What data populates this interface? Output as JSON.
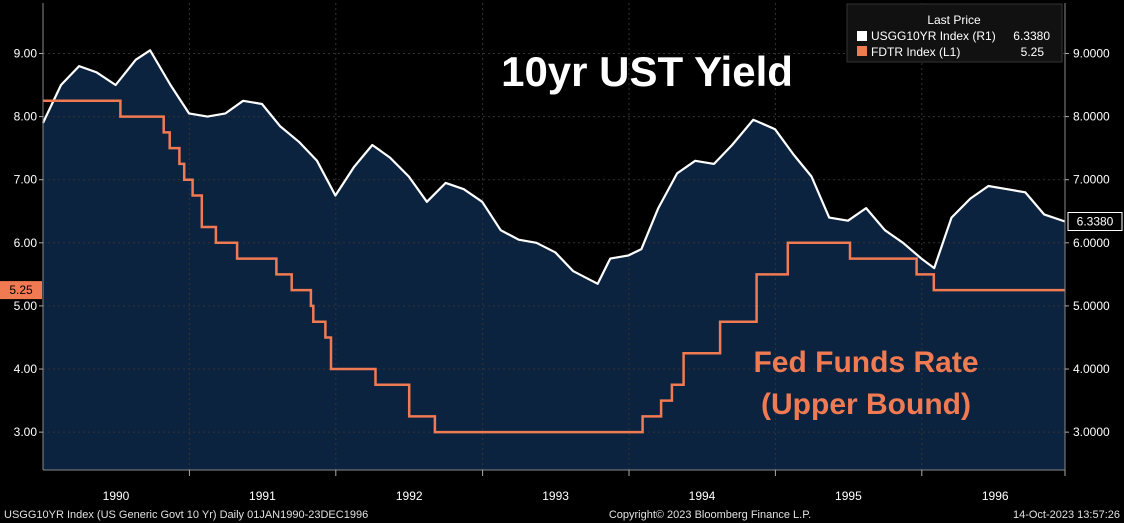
{
  "chart_data": {
    "type": "line",
    "title": "10yr UST Yield",
    "annotations": [
      "Fed Funds Rate",
      "(Upper Bound)"
    ],
    "x_range": [
      "1990-01-01",
      "1996-12-23"
    ],
    "x_tick_labels": [
      "1990",
      "1991",
      "1992",
      "1993",
      "1994",
      "1995",
      "1996"
    ],
    "left_axis": {
      "range": [
        2.4,
        9.8
      ],
      "tick_labels": [
        "3.00",
        "4.00",
        "5.00",
        "6.00",
        "7.00",
        "8.00",
        "9.00"
      ]
    },
    "right_axis": {
      "range": [
        2.4,
        9.8
      ],
      "tick_labels": [
        "3.0000",
        "4.0000",
        "5.0000",
        "6.0000",
        "7.0000",
        "8.0000",
        "9.0000"
      ]
    },
    "grid": true,
    "legend": {
      "placement": "top-right",
      "header": "Last Price",
      "entries": [
        {
          "label": "USGG10YR Index  (R1)",
          "value": "6.3380",
          "color": "#ffffff"
        },
        {
          "label": "FDTR Index  (L1)",
          "value": "5.25",
          "color": "#f07a52"
        }
      ]
    },
    "series": [
      {
        "name": "USGG10YR Index",
        "axis": "right",
        "color": "#ffffff",
        "last_label": "6.3380",
        "x": [
          "1990-01-01",
          "1990-02-15",
          "1990-04-01",
          "1990-05-15",
          "1990-07-01",
          "1990-08-20",
          "1990-09-25",
          "1990-11-15",
          "1990-12-31",
          "1991-02-15",
          "1991-04-01",
          "1991-05-15",
          "1991-07-01",
          "1991-08-15",
          "1991-10-01",
          "1991-11-15",
          "1991-12-31",
          "1992-02-15",
          "1992-04-01",
          "1992-05-15",
          "1992-07-01",
          "1992-08-15",
          "1992-10-01",
          "1992-11-15",
          "1992-12-31",
          "1993-02-15",
          "1993-04-01",
          "1993-05-15",
          "1993-07-01",
          "1993-08-15",
          "1993-10-15",
          "1993-11-15",
          "1993-12-31",
          "1994-02-01",
          "1994-03-15",
          "1994-05-01",
          "1994-06-15",
          "1994-08-01",
          "1994-09-15",
          "1994-11-07",
          "1994-12-31",
          "1995-02-15",
          "1995-04-01",
          "1995-05-15",
          "1995-07-01",
          "1995-08-15",
          "1995-10-01",
          "1995-11-15",
          "1995-12-31",
          "1996-02-01",
          "1996-03-15",
          "1996-05-01",
          "1996-06-15",
          "1996-08-01",
          "1996-09-15",
          "1996-11-01",
          "1996-12-23"
        ],
        "values": [
          7.9,
          8.5,
          8.8,
          8.7,
          8.5,
          8.9,
          9.05,
          8.5,
          8.05,
          8.0,
          8.05,
          8.25,
          8.2,
          7.85,
          7.6,
          7.3,
          6.75,
          7.2,
          7.55,
          7.35,
          7.05,
          6.65,
          6.95,
          6.85,
          6.65,
          6.2,
          6.05,
          6.0,
          5.85,
          5.55,
          5.35,
          5.75,
          5.8,
          5.9,
          6.55,
          7.1,
          7.3,
          7.25,
          7.55,
          7.95,
          7.8,
          7.4,
          7.05,
          6.4,
          6.35,
          6.55,
          6.2,
          6.0,
          5.75,
          5.6,
          6.4,
          6.7,
          6.9,
          6.85,
          6.8,
          6.45,
          6.338
        ]
      },
      {
        "name": "FDTR Index",
        "axis": "left",
        "color": "#f07a52",
        "last_label": "5.25",
        "steps": [
          {
            "date": "1990-01-01",
            "value": 8.25
          },
          {
            "date": "1990-07-13",
            "value": 8.0
          },
          {
            "date": "1990-10-29",
            "value": 7.75
          },
          {
            "date": "1990-11-13",
            "value": 7.5
          },
          {
            "date": "1990-12-07",
            "value": 7.25
          },
          {
            "date": "1990-12-19",
            "value": 7.0
          },
          {
            "date": "1991-01-09",
            "value": 6.75
          },
          {
            "date": "1991-02-01",
            "value": 6.25
          },
          {
            "date": "1991-03-08",
            "value": 6.0
          },
          {
            "date": "1991-04-30",
            "value": 5.75
          },
          {
            "date": "1991-08-06",
            "value": 5.5
          },
          {
            "date": "1991-09-13",
            "value": 5.25
          },
          {
            "date": "1991-10-31",
            "value": 5.0
          },
          {
            "date": "1991-11-06",
            "value": 4.75
          },
          {
            "date": "1991-12-06",
            "value": 4.5
          },
          {
            "date": "1991-12-20",
            "value": 4.0
          },
          {
            "date": "1992-04-09",
            "value": 3.75
          },
          {
            "date": "1992-07-02",
            "value": 3.25
          },
          {
            "date": "1992-09-04",
            "value": 3.0
          },
          {
            "date": "1994-02-04",
            "value": 3.25
          },
          {
            "date": "1994-03-22",
            "value": 3.5
          },
          {
            "date": "1994-04-18",
            "value": 3.75
          },
          {
            "date": "1994-05-17",
            "value": 4.25
          },
          {
            "date": "1994-08-16",
            "value": 4.75
          },
          {
            "date": "1994-11-15",
            "value": 5.5
          },
          {
            "date": "1995-02-01",
            "value": 6.0
          },
          {
            "date": "1995-07-06",
            "value": 5.75
          },
          {
            "date": "1995-12-19",
            "value": 5.5
          },
          {
            "date": "1996-01-31",
            "value": 5.25
          },
          {
            "date": "1996-12-23",
            "value": 5.25
          }
        ]
      }
    ]
  },
  "footer": {
    "left": "USGG10YR Index (US Generic Govt 10 Yr)  Daily 01JAN1990-23DEC1996",
    "center": "Copyright© 2023 Bloomberg Finance L.P.",
    "right": "14-Oct-2023 13:57:26"
  },
  "colors": {
    "background": "#000000",
    "plot_area": "#0c2340",
    "area_fill": "#0c2340",
    "grid": "#2e2e2e",
    "fed_funds": "#f07a52",
    "yield_line": "#ffffff"
  }
}
